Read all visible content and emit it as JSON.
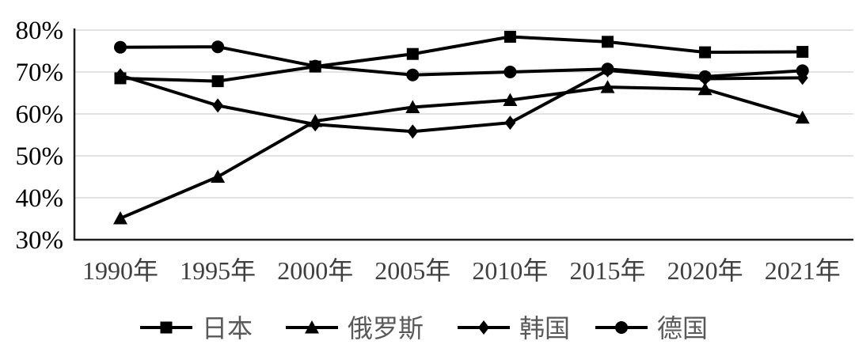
{
  "chart_data": {
    "type": "line",
    "title": "",
    "categories": [
      "1990年",
      "1995年",
      "2000年",
      "2005年",
      "2010年",
      "2015年",
      "2020年",
      "2021年"
    ],
    "series": [
      {
        "key": "japan",
        "name": "日本",
        "marker": "square",
        "values": [
          68.5,
          67.8,
          71.3,
          74.3,
          78.4,
          77.2,
          74.7,
          74.8
        ]
      },
      {
        "key": "russia",
        "name": "俄罗斯",
        "marker": "triangle",
        "values": [
          35.1,
          45.0,
          58.3,
          61.6,
          63.3,
          66.4,
          65.9,
          59.1
        ]
      },
      {
        "key": "korea",
        "name": "韩国",
        "marker": "diamond",
        "values": [
          69.2,
          62.0,
          57.5,
          55.8,
          57.9,
          70.4,
          68.4,
          68.6
        ]
      },
      {
        "key": "germany",
        "name": "德国",
        "marker": "circle",
        "values": [
          75.9,
          76.0,
          71.4,
          69.3,
          70.0,
          70.7,
          68.9,
          70.3
        ]
      }
    ],
    "y_ticks": [
      {
        "label": "80%",
        "value": 80
      },
      {
        "label": "70%",
        "value": 70
      },
      {
        "label": "60%",
        "value": 60
      },
      {
        "label": "50%",
        "value": 50
      },
      {
        "label": "40%",
        "value": 40
      },
      {
        "label": "30%",
        "value": 30
      }
    ],
    "ylim": [
      30,
      80
    ],
    "grid": true,
    "legend_position": "bottom",
    "colors": {
      "series": "#000000",
      "grid": "#d9d9d9",
      "axis": "#1f1f1f",
      "y_tick_label": "#000000",
      "x_tick_label": "#3f3f3f",
      "legend_label": "#595959",
      "background": "#ffffff"
    }
  }
}
